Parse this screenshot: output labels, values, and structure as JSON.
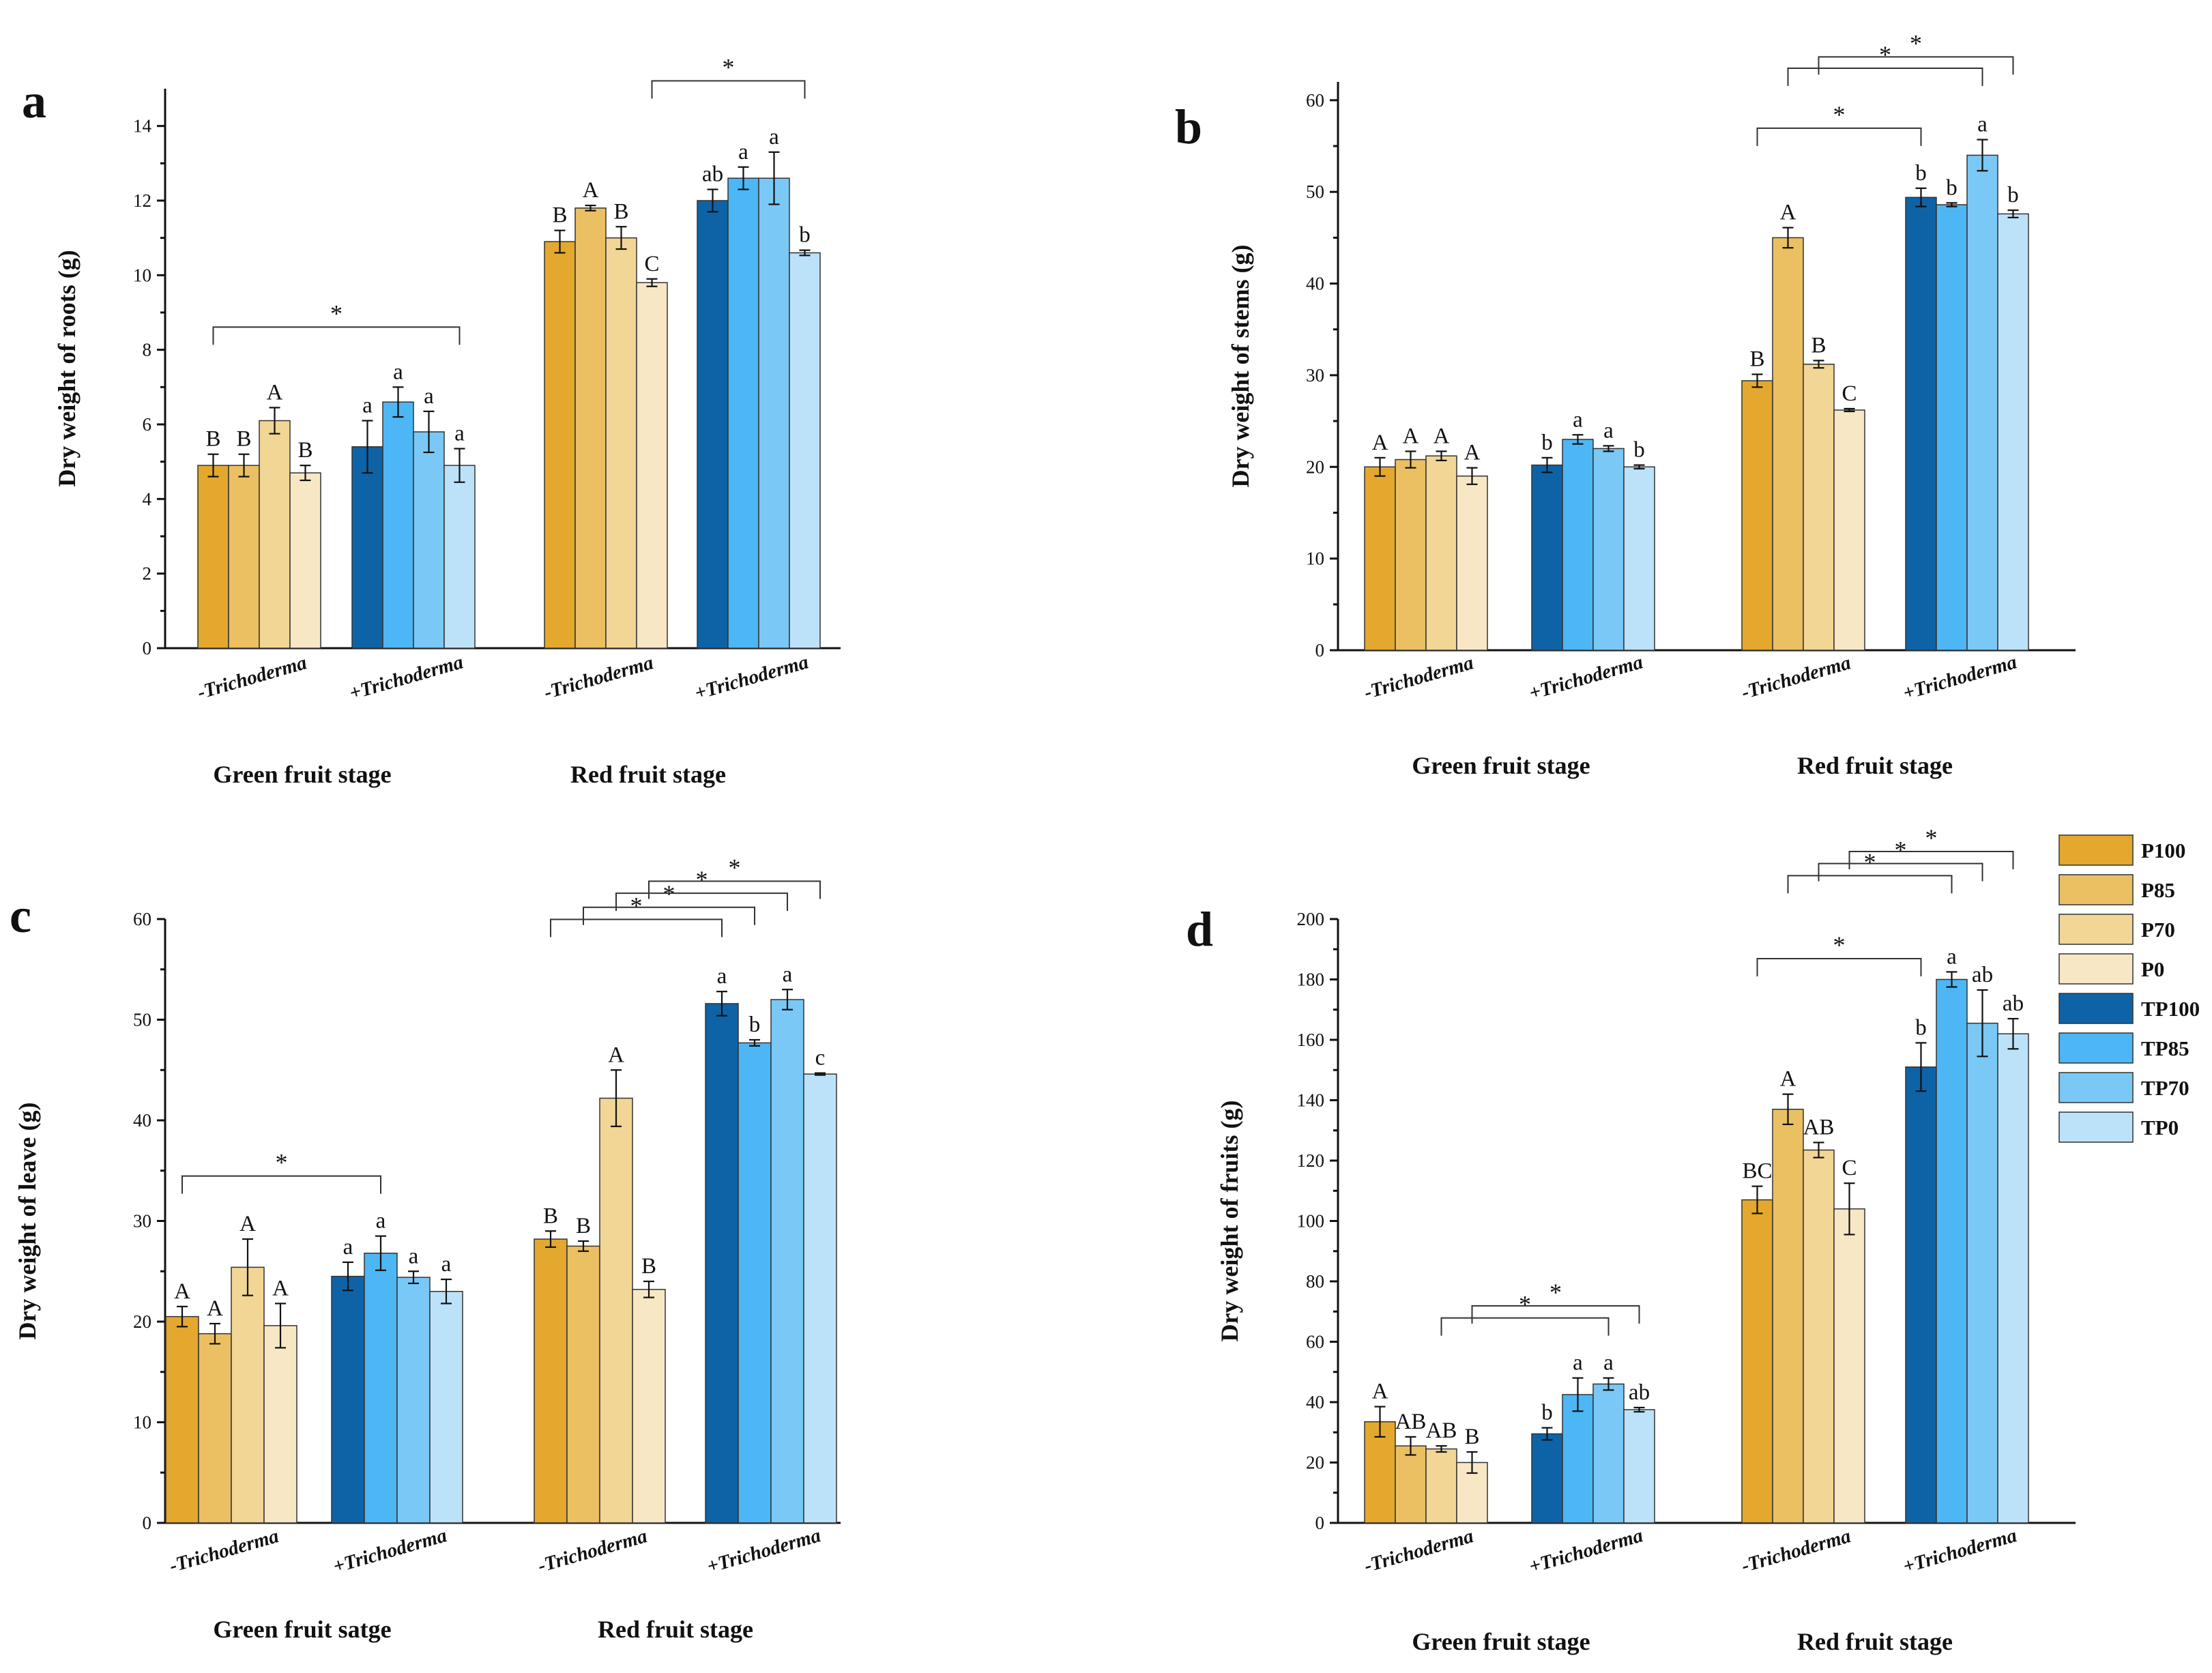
{
  "figure": {
    "colors": {
      "P100": "#E3A82D",
      "P85": "#EBC062",
      "P70": "#F2D695",
      "P0": "#F8E7C5",
      "TP100": "#0E63A7",
      "TP85": "#4DB6F5",
      "TP70": "#7AC8F6",
      "TP0": "#BCE2FA"
    }
  },
  "legend": {
    "items": [
      {
        "key": "P100",
        "label": "P100"
      },
      {
        "key": "P85",
        "label": "P85"
      },
      {
        "key": "P70",
        "label": "P70"
      },
      {
        "key": "P0",
        "label": "P0"
      },
      {
        "key": "TP100",
        "label": "TP100"
      },
      {
        "key": "TP85",
        "label": "TP85"
      },
      {
        "key": "TP70",
        "label": "TP70"
      },
      {
        "key": "TP0",
        "label": "TP0"
      }
    ]
  },
  "chart_data": [
    {
      "type": "bar",
      "panel": "a",
      "ylabel": "Dry weight of roots (g)",
      "ylim": [
        0,
        15
      ],
      "yticks": [
        0,
        2,
        4,
        6,
        8,
        10,
        12,
        14
      ],
      "group_labels": [
        "-Trichoderma",
        "+Trichoderma",
        "-Trichoderma",
        "+Trichoderma"
      ],
      "stage_labels": [
        "Green fruit stage",
        "Red fruit stage"
      ],
      "groups": [
        {
          "series": [
            "P100",
            "P85",
            "P70",
            "P0"
          ],
          "values": [
            4.9,
            4.9,
            6.1,
            4.7
          ],
          "errors": [
            0.3,
            0.3,
            0.35,
            0.2
          ],
          "letters": [
            "B",
            "B",
            "A",
            "B"
          ]
        },
        {
          "series": [
            "TP100",
            "TP85",
            "TP70",
            "TP0"
          ],
          "values": [
            5.4,
            6.6,
            5.8,
            4.9
          ],
          "errors": [
            0.7,
            0.4,
            0.55,
            0.45
          ],
          "letters": [
            "a",
            "a",
            "a",
            "a"
          ]
        },
        {
          "series": [
            "P100",
            "P85",
            "P70",
            "P0"
          ],
          "values": [
            10.9,
            11.8,
            11.0,
            9.8
          ],
          "errors": [
            0.3,
            0.07,
            0.3,
            0.1
          ],
          "letters": [
            "B",
            "A",
            "B",
            "C"
          ]
        },
        {
          "series": [
            "TP100",
            "TP85",
            "TP70",
            "TP0"
          ],
          "values": [
            12.0,
            12.6,
            12.6,
            10.6
          ],
          "errors": [
            0.3,
            0.3,
            0.7,
            0.07
          ],
          "letters": [
            "ab",
            "a",
            "a",
            "b"
          ]
        }
      ],
      "significance": [
        {
          "from": [
            0,
            0
          ],
          "to": [
            1,
            3
          ],
          "label": "*"
        },
        {
          "from": [
            2,
            3
          ],
          "to": [
            3,
            3
          ],
          "label": "*"
        }
      ]
    },
    {
      "type": "bar",
      "panel": "b",
      "ylabel": "Dry weight of stems (g)",
      "ylim": [
        0,
        62
      ],
      "yticks": [
        0,
        10,
        20,
        30,
        40,
        50,
        60
      ],
      "group_labels": [
        "-Trichoderma",
        "+Trichoderma",
        "-Trichoderma",
        "+Trichoderma"
      ],
      "stage_labels": [
        "Green fruit stage",
        "Red fruit stage"
      ],
      "groups": [
        {
          "series": [
            "P100",
            "P85",
            "P70",
            "P0"
          ],
          "values": [
            20.0,
            20.8,
            21.2,
            19.0
          ],
          "errors": [
            1.0,
            0.9,
            0.5,
            0.9
          ],
          "letters": [
            "A",
            "A",
            "A",
            "A"
          ]
        },
        {
          "series": [
            "TP100",
            "TP85",
            "TP70",
            "TP0"
          ],
          "values": [
            20.2,
            23.0,
            22.0,
            20.0
          ],
          "errors": [
            0.8,
            0.5,
            0.3,
            0.2
          ],
          "letters": [
            "b",
            "a",
            "a",
            "b"
          ]
        },
        {
          "series": [
            "P100",
            "P85",
            "P70",
            "P0"
          ],
          "values": [
            29.4,
            45.0,
            31.2,
            26.2
          ],
          "errors": [
            0.7,
            1.1,
            0.4,
            0.15
          ],
          "letters": [
            "B",
            "A",
            "B",
            "C"
          ]
        },
        {
          "series": [
            "TP100",
            "TP85",
            "TP70",
            "TP0"
          ],
          "values": [
            49.4,
            48.6,
            54.0,
            47.6
          ],
          "errors": [
            1.0,
            0.2,
            1.7,
            0.4
          ],
          "letters": [
            "b",
            "b",
            "a",
            "b"
          ]
        }
      ],
      "significance": [
        {
          "from": [
            2,
            0
          ],
          "to": [
            3,
            0
          ],
          "label": "*"
        },
        {
          "from": [
            2,
            1
          ],
          "to": [
            3,
            2
          ],
          "label": "*"
        },
        {
          "from": [
            2,
            2
          ],
          "to": [
            3,
            3
          ],
          "label": "*"
        }
      ]
    },
    {
      "type": "bar",
      "panel": "c",
      "ylabel": "Dry weight of leave (g)",
      "ylim": [
        0,
        60
      ],
      "yticks": [
        0,
        10,
        20,
        30,
        40,
        50,
        60
      ],
      "group_labels": [
        "-Trichoderma",
        "+Trichoderma",
        "-Trichoderma",
        "+Trichoderma"
      ],
      "stage_labels": [
        "Green fruit satge",
        "Red fruit stage"
      ],
      "groups": [
        {
          "series": [
            "P100",
            "P85",
            "P70",
            "P0"
          ],
          "values": [
            20.5,
            18.8,
            25.4,
            19.6
          ],
          "errors": [
            1.0,
            1.0,
            2.8,
            2.2
          ],
          "letters": [
            "A",
            "A",
            "A",
            "A"
          ]
        },
        {
          "series": [
            "TP100",
            "TP85",
            "TP70",
            "TP0"
          ],
          "values": [
            24.5,
            26.8,
            24.4,
            23.0
          ],
          "errors": [
            1.4,
            1.7,
            0.6,
            1.2
          ],
          "letters": [
            "a",
            "a",
            "a",
            "a"
          ]
        },
        {
          "series": [
            "P100",
            "P85",
            "P70",
            "P0"
          ],
          "values": [
            28.2,
            27.5,
            42.2,
            23.2
          ],
          "errors": [
            0.8,
            0.5,
            2.8,
            0.8
          ],
          "letters": [
            "B",
            "B",
            "A",
            "B"
          ]
        },
        {
          "series": [
            "TP100",
            "TP85",
            "TP70",
            "TP0"
          ],
          "values": [
            51.6,
            47.7,
            52.0,
            44.6
          ],
          "errors": [
            1.2,
            0.3,
            1.0,
            0.1
          ],
          "letters": [
            "a",
            "b",
            "a",
            "c"
          ]
        }
      ],
      "significance": [
        {
          "from": [
            0,
            0
          ],
          "to": [
            1,
            1
          ],
          "label": "*"
        },
        {
          "from": [
            2,
            0
          ],
          "to": [
            3,
            0
          ],
          "label": "*"
        },
        {
          "from": [
            2,
            1
          ],
          "to": [
            3,
            1
          ],
          "label": "*"
        },
        {
          "from": [
            2,
            2
          ],
          "to": [
            3,
            2
          ],
          "label": "*"
        },
        {
          "from": [
            2,
            3
          ],
          "to": [
            3,
            3
          ],
          "label": "*"
        }
      ]
    },
    {
      "type": "bar",
      "panel": "d",
      "ylabel": "Dry weight of fruits (g)",
      "ylim": [
        0,
        200
      ],
      "yticks": [
        0,
        20,
        40,
        60,
        80,
        100,
        120,
        140,
        160,
        180,
        200
      ],
      "group_labels": [
        "-Trichoderma",
        "+Trichoderma",
        "-Trichoderma",
        "+Trichoderma"
      ],
      "stage_labels": [
        "Green fruit stage",
        "Red fruit stage"
      ],
      "groups": [
        {
          "series": [
            "P100",
            "P85",
            "P70",
            "P0"
          ],
          "values": [
            33.5,
            25.5,
            24.5,
            20.0
          ],
          "errors": [
            5.0,
            3.0,
            1.0,
            3.5
          ],
          "letters": [
            "A",
            "AB",
            "AB",
            "B"
          ]
        },
        {
          "series": [
            "TP100",
            "TP85",
            "TP70",
            "TP0"
          ],
          "values": [
            29.5,
            42.5,
            46.0,
            37.5
          ],
          "errors": [
            2.0,
            5.5,
            2.0,
            0.7
          ],
          "letters": [
            "b",
            "a",
            "a",
            "ab"
          ]
        },
        {
          "series": [
            "P100",
            "P85",
            "P70",
            "P0"
          ],
          "values": [
            107.0,
            137.0,
            123.5,
            104.0
          ],
          "errors": [
            4.5,
            5.0,
            2.5,
            8.5
          ],
          "letters": [
            "BC",
            "A",
            "AB",
            "C"
          ]
        },
        {
          "series": [
            "TP100",
            "TP85",
            "TP70",
            "TP0"
          ],
          "values": [
            151.0,
            180.0,
            165.5,
            162.0
          ],
          "errors": [
            8.0,
            2.5,
            11.0,
            5.0
          ],
          "letters": [
            "b",
            "a",
            "ab",
            "ab"
          ]
        }
      ],
      "significance": [
        {
          "from": [
            0,
            2
          ],
          "to": [
            1,
            2
          ],
          "label": "*"
        },
        {
          "from": [
            0,
            3
          ],
          "to": [
            1,
            3
          ],
          "label": "*"
        },
        {
          "from": [
            2,
            0
          ],
          "to": [
            3,
            0
          ],
          "label": "*"
        },
        {
          "from": [
            2,
            1
          ],
          "to": [
            3,
            1
          ],
          "label": "*"
        },
        {
          "from": [
            2,
            2
          ],
          "to": [
            3,
            2
          ],
          "label": "*"
        },
        {
          "from": [
            2,
            3
          ],
          "to": [
            3,
            3
          ],
          "label": "*"
        }
      ]
    }
  ]
}
